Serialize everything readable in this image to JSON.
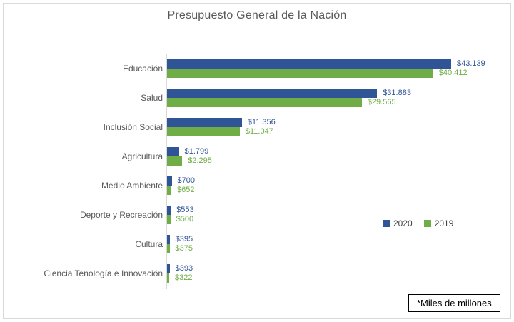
{
  "title": "Presupuesto General de la Nación",
  "footnote": "*Miles de millones",
  "legend": {
    "items": [
      {
        "label": "2020",
        "color": "#2F5597"
      },
      {
        "label": "2019",
        "color": "#70AD47"
      }
    ]
  },
  "chart_data": {
    "type": "bar",
    "orientation": "horizontal",
    "title": "Presupuesto General de la Nación",
    "unit_note": "*Miles de millones",
    "categories": [
      "Educación",
      "Salud",
      "Inclusión Social",
      "Agricultura",
      "Medio Ambiente",
      "Deporte y Recreación",
      "Cultura",
      "Ciencia Tenología e Innovación"
    ],
    "series": [
      {
        "name": "2020",
        "color": "#2F5597",
        "values": [
          43139,
          31883,
          11356,
          1799,
          700,
          553,
          395,
          393
        ],
        "value_labels": [
          "$43.139",
          "$31.883",
          "$11.356",
          "$1.799",
          "$700",
          "$553",
          "$395",
          "$393"
        ]
      },
      {
        "name": "2019",
        "color": "#70AD47",
        "values": [
          40412,
          29565,
          11047,
          2295,
          652,
          500,
          375,
          322
        ],
        "value_labels": [
          "$40.412",
          "$29.565",
          "$11.047",
          "$2.295",
          "$652",
          "$500",
          "$375",
          "$322"
        ]
      }
    ],
    "xlim": [
      0,
      43139
    ],
    "grid": false,
    "legend_position": "right-middle",
    "axis_color": "#d9d9d9",
    "label_color": "#595959"
  }
}
